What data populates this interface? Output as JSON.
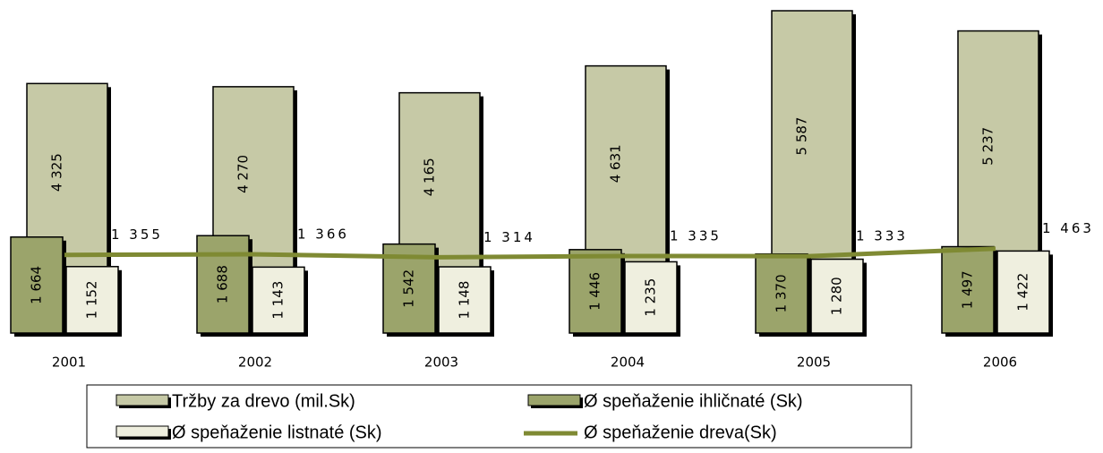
{
  "chart_data": {
    "type": "bar-line",
    "categories": [
      "2001",
      "2002",
      "2003",
      "2004",
      "2005",
      "2006"
    ],
    "series": [
      {
        "name": "Tržby za drevo (mil.Sk)",
        "color": "#c6c9a6",
        "values": [
          4325,
          4270,
          4165,
          4631,
          5587,
          5237
        ],
        "value_labels": [
          "4 325",
          "4 270",
          "4 165",
          "4 631",
          "5 587",
          "5 237"
        ]
      },
      {
        "name": "Ø speňaženie ihličnaté (Sk)",
        "color": "#9ba46b",
        "values": [
          1664,
          1688,
          1542,
          1446,
          1370,
          1497
        ],
        "value_labels": [
          "1 664",
          "1 688",
          "1 542",
          "1 446",
          "1 370",
          "1 497"
        ]
      },
      {
        "name": "Ø speňaženie listnaté (Sk)",
        "color": "#efefdf",
        "values": [
          1152,
          1143,
          1148,
          1235,
          1280,
          1422
        ],
        "value_labels": [
          "1 152",
          "1 143",
          "1 148",
          "1 235",
          "1 280",
          "1 422"
        ]
      },
      {
        "name": "Ø speňaženie dreva(Sk)",
        "color": "#7f8a33",
        "type": "line",
        "values": [
          1355,
          1366,
          1314,
          1335,
          1333,
          1463
        ],
        "value_labels": [
          "1 355",
          "1 366",
          "1 314",
          "1 335",
          "1 333",
          "1 463"
        ]
      }
    ]
  }
}
